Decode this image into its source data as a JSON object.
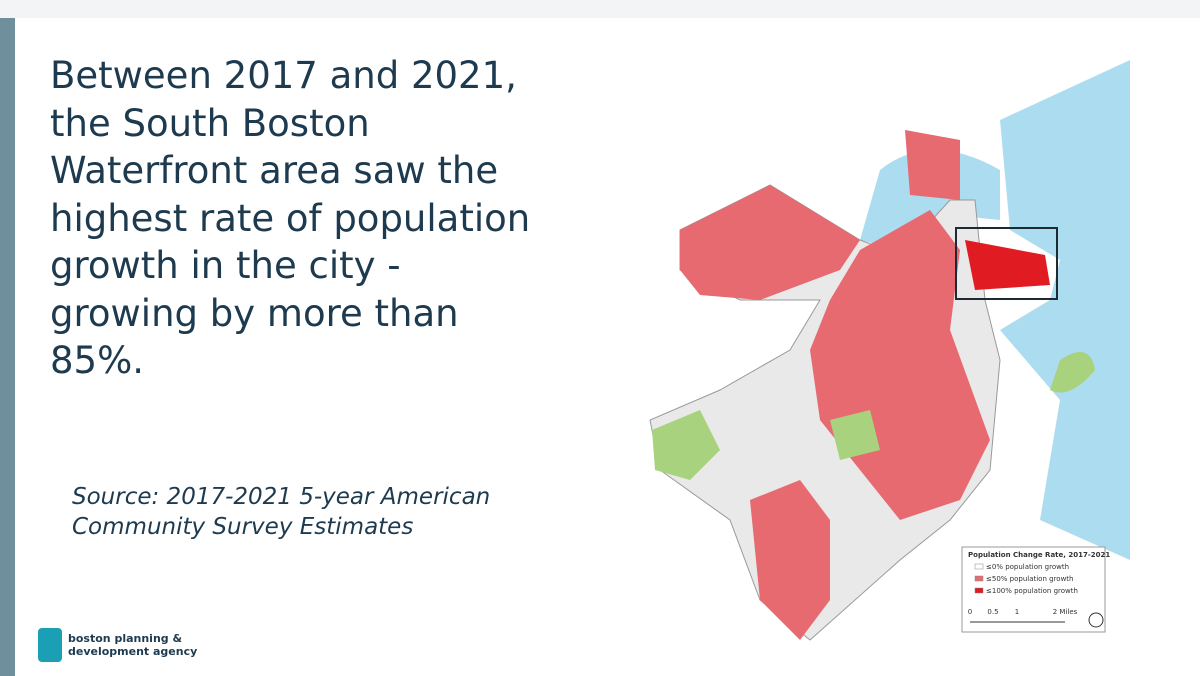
{
  "slide": {
    "heading": [
      "Between 2017 and 2021,",
      "the South Boston",
      "Waterfront area saw the",
      "highest rate of population",
      "growth in the city -",
      "growing by more than",
      "85%."
    ],
    "source": [
      "Source: 2017-2021 5-year American",
      "Community Survey Estimates"
    ]
  },
  "logo": {
    "lines": [
      "boston planning &",
      "development agency"
    ]
  },
  "legend": {
    "title": "Population Change Rate, 2017-2021",
    "items": [
      "≤0% population growth",
      "≤50% population growth",
      "≤100% population growth"
    ],
    "scale": [
      "0",
      "0.5",
      "1",
      "2 Miles"
    ]
  }
}
